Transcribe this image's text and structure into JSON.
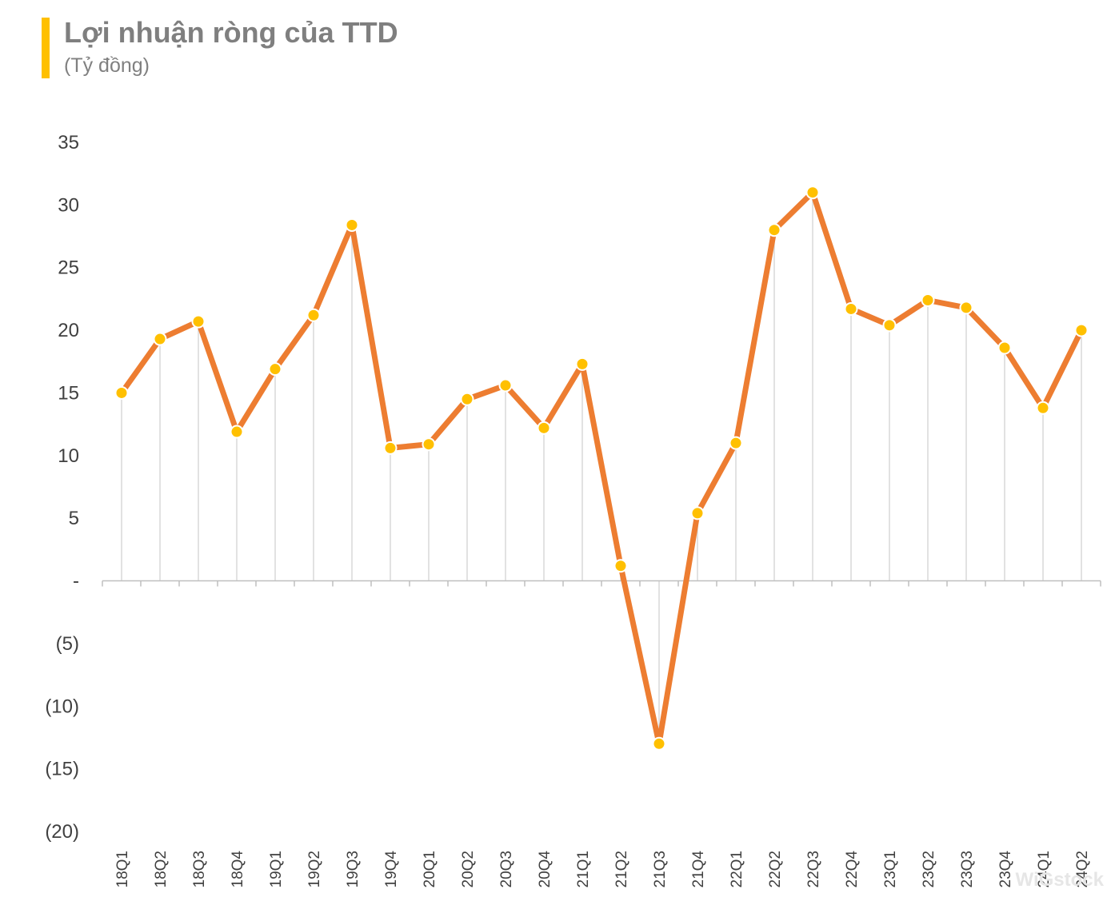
{
  "header": {
    "title": "Lợi nhuận ròng của TTD",
    "subtitle": "(Tỷ đồng)"
  },
  "watermark": "WiGstock",
  "colors": {
    "accent_bar": "#ffc000",
    "line": "#ed7d31",
    "marker": "#ffc000",
    "marker_stroke": "#ffffff",
    "drop_line": "#d9d9d9",
    "axis": "#bfbfbf"
  },
  "chart_data": {
    "type": "line",
    "title": "Lợi nhuận ròng của TTD",
    "subtitle": "(Tỷ đồng)",
    "xlabel": "",
    "ylabel": "",
    "ylim": [
      -20,
      35
    ],
    "yticks": [
      35,
      30,
      25,
      20,
      15,
      10,
      5,
      0,
      -5,
      -10,
      -15,
      -20
    ],
    "ytick_labels": [
      "35",
      "30",
      "25",
      "20",
      "15",
      "10",
      "5",
      "-",
      "(5)",
      "(10)",
      "(15)",
      "(20)"
    ],
    "grid": false,
    "drop_lines": true,
    "categories": [
      "18Q1",
      "18Q2",
      "18Q3",
      "18Q4",
      "19Q1",
      "19Q2",
      "19Q3",
      "19Q4",
      "20Q1",
      "20Q2",
      "20Q3",
      "20Q4",
      "21Q1",
      "21Q2",
      "21Q3",
      "21Q4",
      "22Q1",
      "22Q2",
      "22Q3",
      "22Q4",
      "23Q1",
      "23Q2",
      "23Q3",
      "23Q4",
      "24Q1",
      "24Q2"
    ],
    "series": [
      {
        "values": [
          15.0,
          19.3,
          20.7,
          11.9,
          16.9,
          21.2,
          28.4,
          10.6,
          10.9,
          14.5,
          15.6,
          12.2,
          17.3,
          1.2,
          -13.0,
          5.4,
          11.0,
          28.0,
          31.0,
          21.7,
          20.4,
          22.4,
          21.8,
          18.6,
          13.8,
          20.0
        ]
      }
    ]
  }
}
